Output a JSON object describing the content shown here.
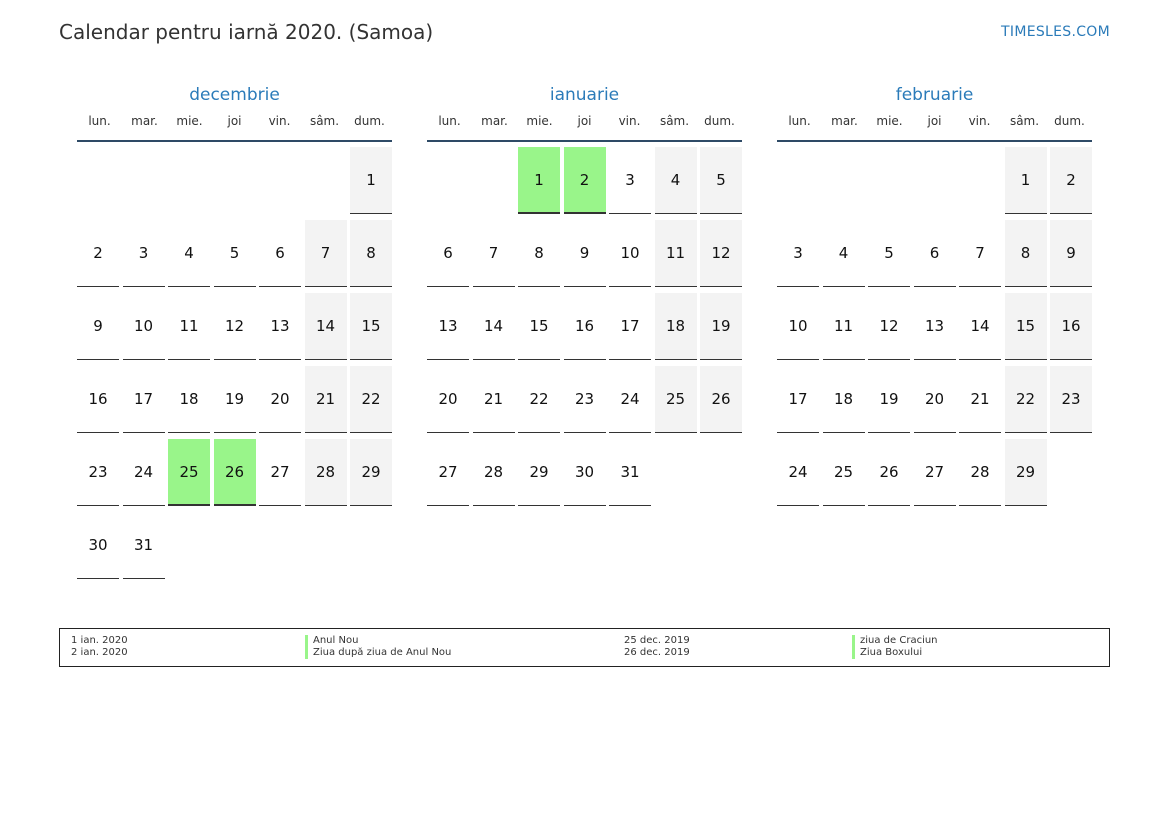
{
  "header": {
    "title": "Calendar pentru iarnă 2020. (Samoa)",
    "site": "TIMESLES.COM"
  },
  "weekdays": [
    "lun.",
    "mar.",
    "mie.",
    "joi",
    "vin.",
    "sâm.",
    "dum."
  ],
  "colors": {
    "holiday": "#99f58a",
    "weekend": "#f3f3f3",
    "accent": "#2b7bb9"
  },
  "months": [
    {
      "name": "decembrie",
      "start_weekday": 6,
      "days": 31,
      "holidays": [
        25,
        26
      ]
    },
    {
      "name": "ianuarie",
      "start_weekday": 2,
      "days": 31,
      "holidays": [
        1,
        2
      ]
    },
    {
      "name": "februarie",
      "start_weekday": 5,
      "days": 29,
      "holidays": []
    }
  ],
  "legend": [
    {
      "date": "1 ian. 2020",
      "name": "Anul Nou"
    },
    {
      "date": "2 ian. 2020",
      "name": "Ziua după ziua de Anul Nou"
    },
    {
      "date": "25 dec. 2019",
      "name": "ziua de Craciun"
    },
    {
      "date": "26 dec. 2019",
      "name": "Ziua Boxului"
    }
  ]
}
